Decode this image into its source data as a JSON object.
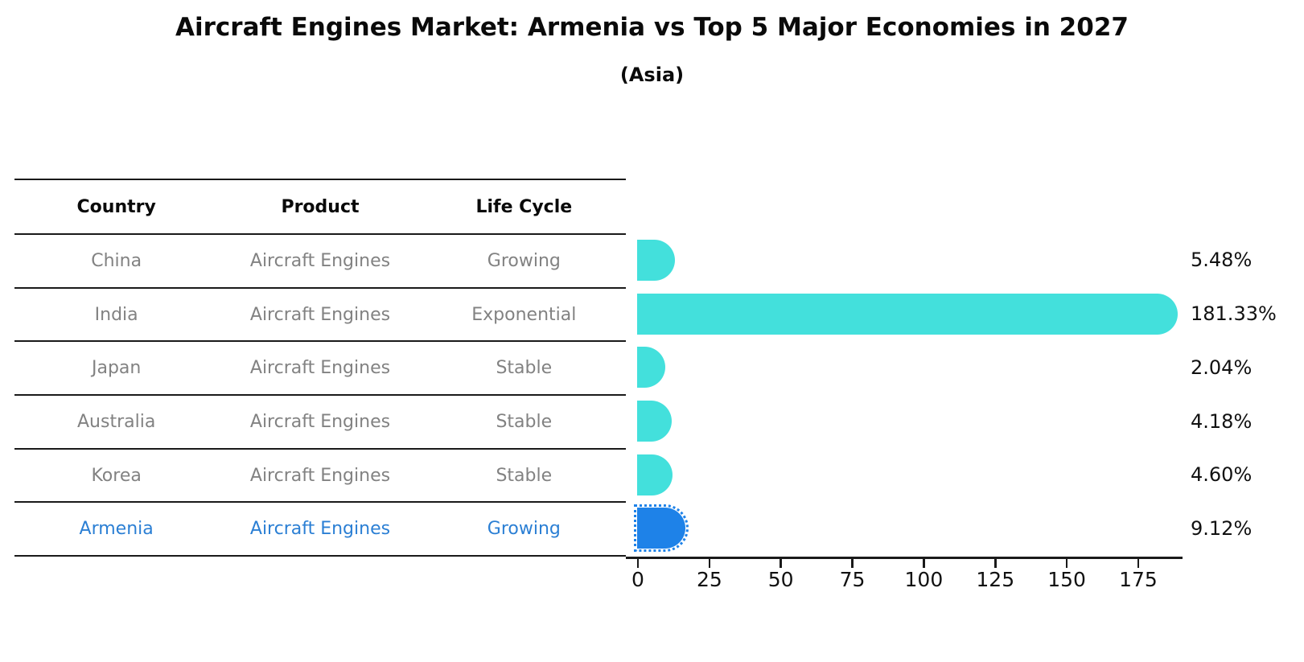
{
  "title": "Aircraft Engines Market: Armenia vs Top 5 Major Economies in 2027",
  "subtitle": "(Asia)",
  "table": {
    "headers": [
      "Country",
      "Product",
      "Life Cycle"
    ],
    "rows": [
      {
        "country": "China",
        "product": "Aircraft Engines",
        "life_cycle": "Growing"
      },
      {
        "country": "India",
        "product": "Aircraft Engines",
        "life_cycle": "Exponential"
      },
      {
        "country": "Japan",
        "product": "Aircraft Engines",
        "life_cycle": "Stable"
      },
      {
        "country": "Australia",
        "product": "Aircraft Engines",
        "life_cycle": "Stable"
      },
      {
        "country": "Korea",
        "product": "Aircraft Engines",
        "life_cycle": "Stable"
      },
      {
        "country": "Armenia",
        "product": "Aircraft Engines",
        "life_cycle": "Growing"
      }
    ],
    "highlight_row": "Armenia"
  },
  "chart_data": {
    "type": "bar",
    "orientation": "horizontal",
    "title": "Aircraft Engines Market: Armenia vs Top 5 Major Economies in 2027",
    "subtitle": "(Asia)",
    "categories": [
      "China",
      "India",
      "Japan",
      "Australia",
      "Korea",
      "Armenia"
    ],
    "values": [
      5.48,
      181.33,
      2.04,
      4.18,
      4.6,
      9.12
    ],
    "value_labels": [
      "5.48%",
      "181.33%",
      "2.04%",
      "4.18%",
      "4.60%",
      "9.12%"
    ],
    "unit": "%",
    "x_ticks": [
      0,
      25,
      50,
      75,
      100,
      125,
      150,
      175
    ],
    "xlim": [
      0,
      190
    ],
    "grid": false,
    "legend": false,
    "bar_color": "#43E0DC",
    "highlight_color": "#1E82E8",
    "highlight_index": 5
  },
  "colors": {
    "bar": "#43E0DC",
    "highlight_bar": "#1E82E8",
    "highlight_text": "#2B7FD4",
    "row_text": "#828282",
    "header_text": "#0a0a0a",
    "axis_line": "#1a1a1a"
  }
}
